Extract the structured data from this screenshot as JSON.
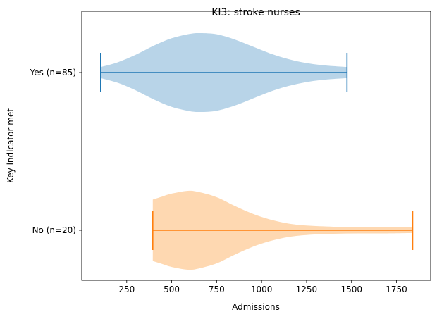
{
  "chart_data": {
    "type": "violin",
    "orientation": "horizontal",
    "title": "KI3: stroke nurses",
    "xlabel": "Admissions",
    "ylabel": "Key indicator met",
    "xlim": [
      0,
      1940
    ],
    "xticks": [
      250,
      500,
      750,
      1000,
      1250,
      1500,
      1750
    ],
    "grid": false,
    "categories": [
      "No (n=20)",
      "Yes (n=85)"
    ],
    "series": [
      {
        "category": "Yes (n=85)",
        "fill_color": "#b8d4e8",
        "line_color": "#1f77b4",
        "min": 105,
        "max": 1475,
        "density": [
          [
            105,
            0.14
          ],
          [
            200,
            0.26
          ],
          [
            300,
            0.45
          ],
          [
            400,
            0.68
          ],
          [
            500,
            0.87
          ],
          [
            600,
            0.98
          ],
          [
            660,
            1.0
          ],
          [
            750,
            0.97
          ],
          [
            850,
            0.84
          ],
          [
            950,
            0.66
          ],
          [
            1050,
            0.48
          ],
          [
            1150,
            0.34
          ],
          [
            1250,
            0.24
          ],
          [
            1350,
            0.18
          ],
          [
            1475,
            0.14
          ]
        ]
      },
      {
        "category": "No (n=20)",
        "fill_color": "#fed8b1",
        "line_color": "#ff7f0e",
        "min": 395,
        "max": 1840,
        "density": [
          [
            395,
            0.78
          ],
          [
            450,
            0.86
          ],
          [
            500,
            0.93
          ],
          [
            590,
            1.0
          ],
          [
            650,
            0.97
          ],
          [
            750,
            0.84
          ],
          [
            850,
            0.62
          ],
          [
            950,
            0.42
          ],
          [
            1050,
            0.27
          ],
          [
            1150,
            0.17
          ],
          [
            1250,
            0.12
          ],
          [
            1400,
            0.09
          ],
          [
            1550,
            0.08
          ],
          [
            1700,
            0.08
          ],
          [
            1840,
            0.07
          ]
        ]
      }
    ]
  }
}
